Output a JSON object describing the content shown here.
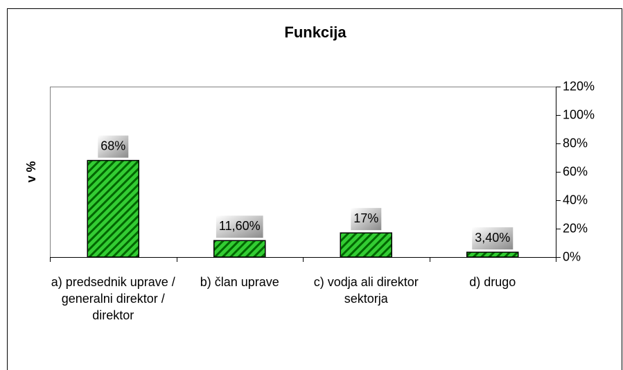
{
  "chart_data": {
    "type": "bar",
    "title": "Funkcija",
    "y_label": "v %",
    "categories": [
      "a) predsednik uprave / generalni direktor / direktor",
      "b) član uprave",
      "c) vodja ali direktor sektorja",
      "d) drugo"
    ],
    "values": [
      68,
      11.6,
      17,
      3.4
    ],
    "value_labels": [
      "68%",
      "11,60%",
      "17%",
      "3,40%"
    ],
    "color": "#33cc33",
    "ylim": [
      0,
      120
    ],
    "yticks": [
      {
        "value": 0,
        "label": "0%"
      },
      {
        "value": 20,
        "label": "20%"
      },
      {
        "value": 40,
        "label": "40%"
      },
      {
        "value": 60,
        "label": "60%"
      },
      {
        "value": 80,
        "label": "80%"
      },
      {
        "value": 100,
        "label": "100%"
      },
      {
        "value": 120,
        "label": "120%"
      }
    ],
    "y_axis_side": "right"
  }
}
